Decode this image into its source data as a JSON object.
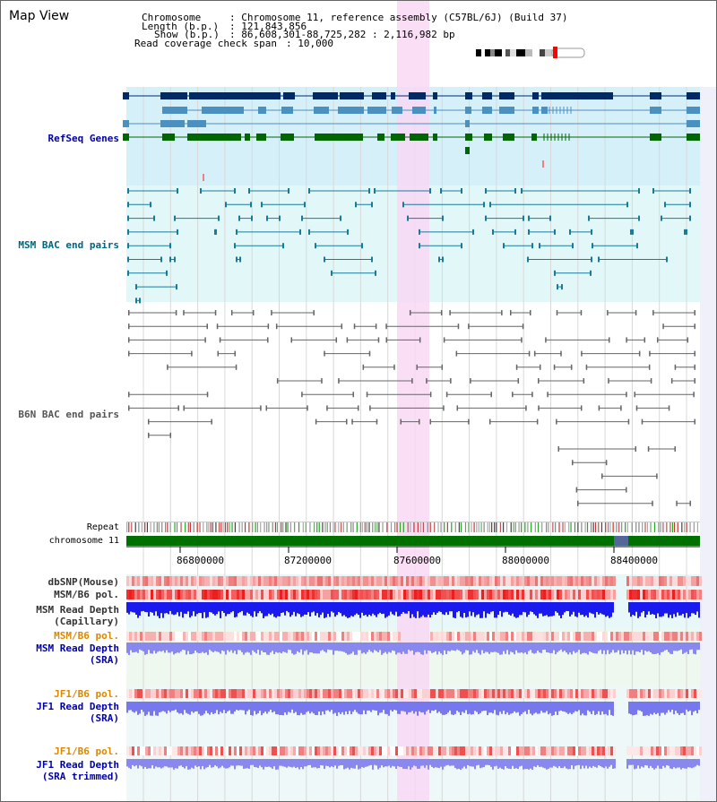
{
  "title": "Map View",
  "info": {
    "chromosome_key": "Chromosome",
    "chromosome_val": ": Chromosome 11, reference assembly (C57BL/6J) (Build 37)",
    "length_key": "Length (b.p.)",
    "length_val": ": 121,843,856",
    "show_key": "Show (b.p.)",
    "show_val": ": 86,608,301-88,725,282 : 2,116,982 bp",
    "coverage_key": "Read coverage check span",
    "coverage_val": ": 10,000"
  },
  "tracks": {
    "refseq": "RefSeq Genes",
    "msm_bac": "MSM BAC end pairs",
    "b6n_bac": "B6N BAC end pairs",
    "repeat": "Repeat",
    "chromosome": "chromosome 11",
    "dbsnp": "dbSNP(Mouse)",
    "msm_b6_pol_1": "MSM/B6 pol.",
    "msm_depth_cap_1": "MSM Read Depth",
    "msm_depth_cap_2": "(Capillary)",
    "msm_b6_pol_2": "MSM/B6 pol.",
    "msm_depth_sra_1": "MSM Read Depth",
    "msm_depth_sra_2": "(SRA)",
    "jf1_b6_pol_1": "JF1/B6 pol.",
    "jf1_depth_sra_1": "JF1 Read Depth",
    "jf1_depth_sra_2": "(SRA)",
    "jf1_b6_pol_2": "JF1/B6 pol.",
    "jf1_depth_trim_1": "JF1 Read Depth",
    "jf1_depth_trim_2": "(SRA trimmed)"
  },
  "axis": {
    "ticks": [
      "86800000",
      "87200000",
      "87600000",
      "88000000",
      "88400000"
    ]
  },
  "colors": {
    "label_blue": "#0000aa",
    "label_teal": "#006680",
    "label_orange": "#dd8800",
    "highlight": "#f8d8f4",
    "gene_dark": "#002a66",
    "gene_mid": "#4a90c0",
    "gene_green": "#006600",
    "msm_bg": "#e2f8f8",
    "refseq_bg": "#d6f0fa",
    "chrom_green": "#007000"
  }
}
